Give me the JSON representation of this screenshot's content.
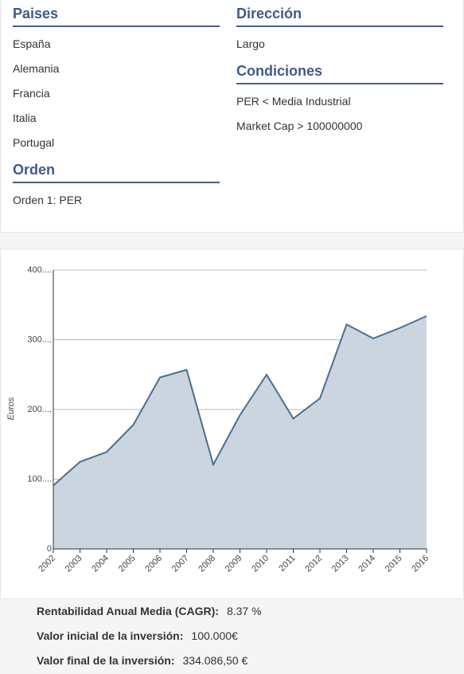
{
  "filters": {
    "paises": {
      "title": "Paises",
      "items": [
        "España",
        "Alemania",
        "Francia",
        "Italia",
        "Portugal"
      ]
    },
    "orden": {
      "title": "Orden",
      "items": [
        "Orden 1: PER"
      ]
    },
    "direccion": {
      "title": "Dirección",
      "items": [
        "Largo"
      ]
    },
    "condiciones": {
      "title": "Condiciones",
      "items": [
        "PER < Media Industrial",
        "Market Cap > 100000000"
      ]
    }
  },
  "chart_data": {
    "type": "area",
    "y_label": "Euros",
    "categories": [
      "2002",
      "2003",
      "2004",
      "2005",
      "2006",
      "2007",
      "2008",
      "2009",
      "2010",
      "2011",
      "2012",
      "2013",
      "2014",
      "2015",
      "2016"
    ],
    "values": [
      91,
      125,
      139,
      178,
      246,
      257,
      121,
      192,
      250,
      187,
      216,
      322,
      302,
      317,
      334
    ],
    "color": "#4b6f8e",
    "fill_color": "#cad5e0",
    "ylim": [
      0,
      400
    ],
    "yticks": [
      0,
      {
        "value": 100,
        "label": "100...."
      },
      {
        "value": 200,
        "label": "200...."
      },
      {
        "value": 300,
        "label": "300...."
      },
      {
        "value": 400,
        "label": "400...."
      }
    ],
    "grid": true
  },
  "summary": [
    {
      "label": "Rentabilidad Anual Media (CAGR):",
      "value": "8.37 %"
    },
    {
      "label": "Valor inicial de la inversión:",
      "value": "100.000€"
    },
    {
      "label": "Valor final de la inversión:",
      "value": "334.086,50 €"
    }
  ]
}
